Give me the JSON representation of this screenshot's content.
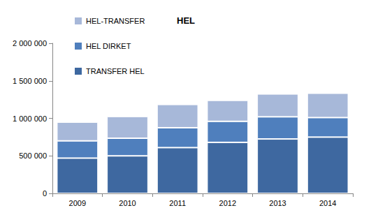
{
  "chart_data": {
    "type": "bar",
    "title": "HEL",
    "stacked": true,
    "grid": false,
    "legend": "top-left",
    "categories": [
      "2009",
      "2010",
      "2011",
      "2012",
      "2013",
      "2014"
    ],
    "series": [
      {
        "name": "TRANSFER HEL",
        "color": "#3E68A0",
        "values": [
          470000,
          500000,
          610000,
          680000,
          725000,
          750000
        ]
      },
      {
        "name": "HEL DIRKET",
        "color": "#4F7FBD",
        "values": [
          230000,
          235000,
          265000,
          280000,
          295000,
          260000
        ]
      },
      {
        "name": "HEL-TRANSFER",
        "color": "#A7B8D9",
        "values": [
          250000,
          290000,
          310000,
          280000,
          305000,
          325000
        ]
      }
    ],
    "ylim": [
      0,
      2000000
    ],
    "yticks": [
      0,
      {
        "value": 500000,
        "label": "500 000"
      },
      {
        "value": 1000000,
        "label": "1 000 000"
      },
      {
        "value": 1500000,
        "label": "1 500 000"
      },
      {
        "value": 2000000,
        "label": "2 000 000"
      }
    ]
  }
}
